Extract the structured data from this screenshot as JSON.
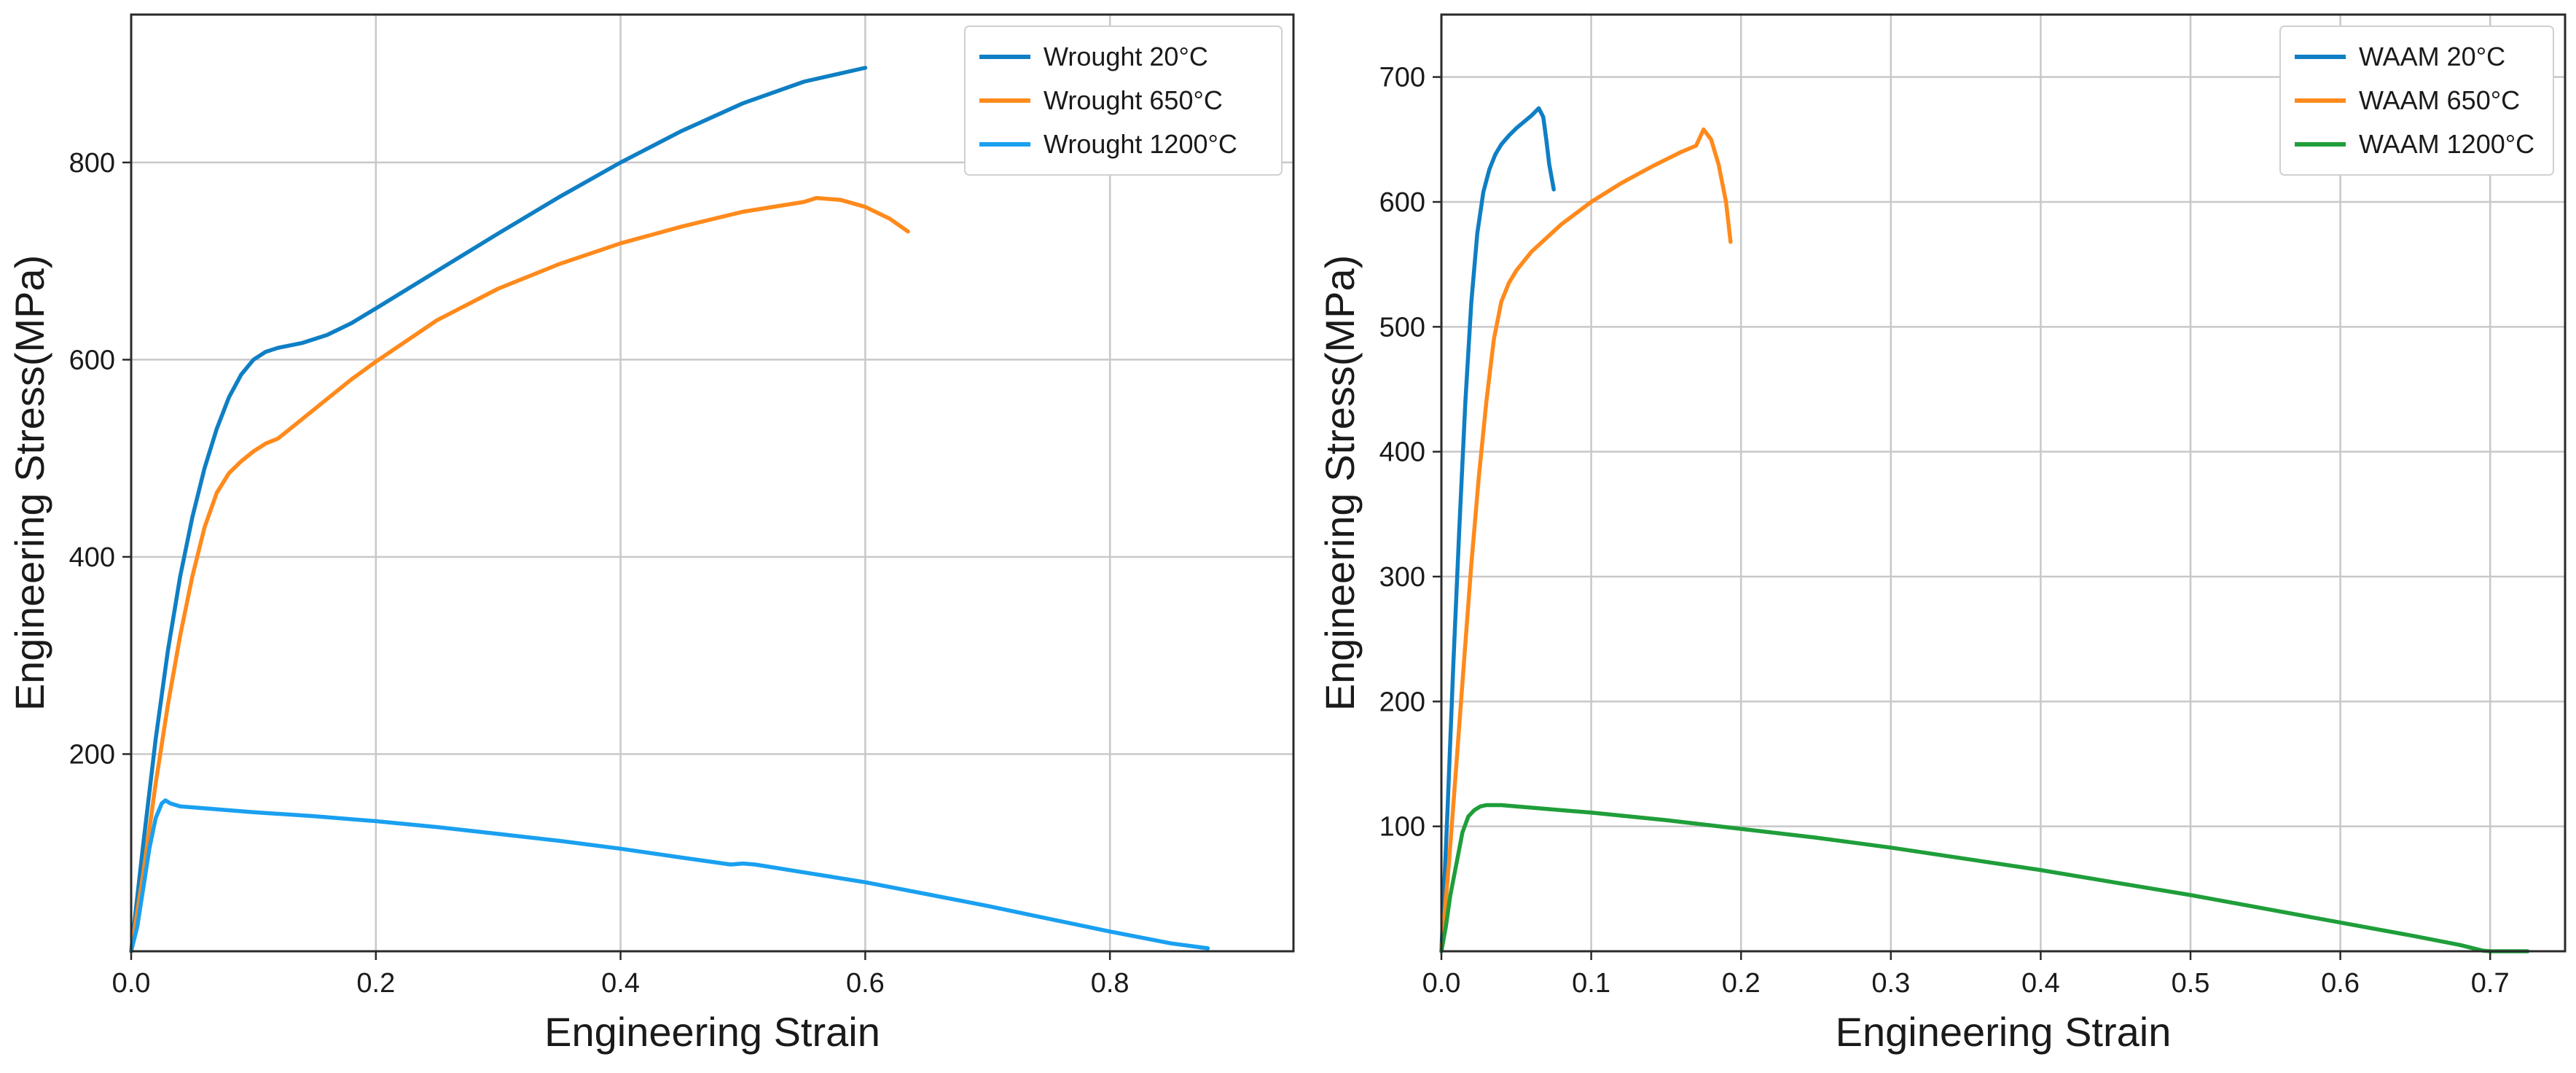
{
  "chart_data": [
    {
      "type": "line",
      "title": "",
      "xlabel": "Engineering Strain",
      "ylabel": "Engineering Stress(MPa)",
      "xlim": [
        0,
        0.95
      ],
      "ylim": [
        0,
        950
      ],
      "xticks": [
        0.0,
        0.2,
        0.4,
        0.6,
        0.8
      ],
      "xtick_labels": [
        "0.0",
        "0.2",
        "0.4",
        "0.6",
        "0.8"
      ],
      "yticks": [
        200,
        400,
        600,
        800
      ],
      "ytick_labels": [
        "200",
        "400",
        "600",
        "800"
      ],
      "grid": true,
      "legend_position": "top-right",
      "series": [
        {
          "name": "Wrought 20°C",
          "color": "#0f7fc4",
          "x": [
            0,
            0.01,
            0.02,
            0.03,
            0.04,
            0.05,
            0.06,
            0.07,
            0.08,
            0.09,
            0.1,
            0.11,
            0.12,
            0.14,
            0.16,
            0.18,
            0.2,
            0.25,
            0.3,
            0.35,
            0.4,
            0.45,
            0.5,
            0.55,
            0.6
          ],
          "y": [
            0,
            110,
            215,
            305,
            380,
            440,
            490,
            530,
            562,
            585,
            600,
            608,
            612,
            617,
            625,
            637,
            652,
            690,
            728,
            765,
            800,
            832,
            860,
            882,
            896
          ]
        },
        {
          "name": "Wrought 650°C",
          "color": "#ff8a1c",
          "x": [
            0,
            0.01,
            0.02,
            0.03,
            0.04,
            0.05,
            0.06,
            0.07,
            0.08,
            0.09,
            0.1,
            0.11,
            0.12,
            0.14,
            0.16,
            0.18,
            0.2,
            0.25,
            0.3,
            0.35,
            0.4,
            0.45,
            0.5,
            0.55,
            0.56,
            0.58,
            0.6,
            0.62,
            0.635
          ],
          "y": [
            0,
            80,
            170,
            250,
            320,
            380,
            430,
            465,
            485,
            497,
            507,
            515,
            520,
            540,
            560,
            580,
            598,
            640,
            672,
            697,
            718,
            735,
            750,
            760,
            764,
            762,
            755,
            743,
            730
          ]
        },
        {
          "name": "Wrought 1200°C",
          "color": "#1aa0f0",
          "x": [
            0,
            0.005,
            0.01,
            0.015,
            0.02,
            0.025,
            0.028,
            0.032,
            0.04,
            0.06,
            0.1,
            0.15,
            0.2,
            0.25,
            0.3,
            0.35,
            0.4,
            0.45,
            0.49,
            0.5,
            0.51,
            0.55,
            0.6,
            0.65,
            0.7,
            0.75,
            0.8,
            0.85,
            0.88
          ],
          "y": [
            0,
            25,
            65,
            105,
            135,
            150,
            153,
            150,
            147,
            145,
            141,
            137,
            132,
            126,
            119,
            112,
            104,
            95,
            88,
            89,
            88,
            80,
            70,
            58,
            46,
            33,
            20,
            8,
            3
          ]
        }
      ]
    },
    {
      "type": "line",
      "title": "",
      "xlabel": "Engineering Strain",
      "ylabel": "Engineering Stress(MPa)",
      "xlim": [
        0,
        0.75
      ],
      "ylim": [
        0,
        750
      ],
      "xticks": [
        0.0,
        0.1,
        0.2,
        0.3,
        0.4,
        0.5,
        0.6,
        0.7
      ],
      "xtick_labels": [
        "0.0",
        "0.1",
        "0.2",
        "0.3",
        "0.4",
        "0.5",
        "0.6",
        "0.7"
      ],
      "yticks": [
        100,
        200,
        300,
        400,
        500,
        600,
        700
      ],
      "ytick_labels": [
        "100",
        "200",
        "300",
        "400",
        "500",
        "600",
        "700"
      ],
      "grid": true,
      "legend_position": "top-right",
      "series": [
        {
          "name": "WAAM 20°C",
          "color": "#0f7fc4",
          "x": [
            0,
            0.004,
            0.008,
            0.012,
            0.016,
            0.02,
            0.024,
            0.028,
            0.032,
            0.036,
            0.04,
            0.045,
            0.05,
            0.055,
            0.06,
            0.065,
            0.068,
            0.07,
            0.072,
            0.075
          ],
          "y": [
            0,
            110,
            230,
            340,
            440,
            520,
            575,
            608,
            626,
            638,
            646,
            653,
            659,
            664,
            669,
            675,
            668,
            650,
            630,
            610
          ]
        },
        {
          "name": "WAAM 650°C",
          "color": "#ff8a1c",
          "x": [
            0,
            0.005,
            0.01,
            0.015,
            0.02,
            0.025,
            0.03,
            0.035,
            0.04,
            0.045,
            0.05,
            0.06,
            0.08,
            0.1,
            0.12,
            0.14,
            0.16,
            0.17,
            0.175,
            0.18,
            0.185,
            0.19,
            0.193
          ],
          "y": [
            0,
            70,
            150,
            230,
            310,
            380,
            440,
            490,
            520,
            535,
            545,
            560,
            582,
            600,
            615,
            628,
            640,
            645,
            658,
            650,
            630,
            600,
            568
          ]
        },
        {
          "name": "WAAM 1200°C",
          "color": "#1f9e3a",
          "x": [
            0,
            0.003,
            0.006,
            0.01,
            0.014,
            0.018,
            0.022,
            0.026,
            0.03,
            0.04,
            0.05,
            0.1,
            0.15,
            0.2,
            0.25,
            0.3,
            0.35,
            0.4,
            0.45,
            0.5,
            0.55,
            0.6,
            0.65,
            0.68,
            0.69,
            0.695,
            0.7,
            0.725
          ],
          "y": [
            0,
            20,
            45,
            70,
            95,
            108,
            113,
            116,
            117,
            117,
            116,
            111,
            105,
            98,
            91,
            83,
            74,
            65,
            55,
            45,
            34,
            23,
            12,
            5,
            2,
            0.5,
            0,
            0
          ]
        }
      ]
    }
  ]
}
